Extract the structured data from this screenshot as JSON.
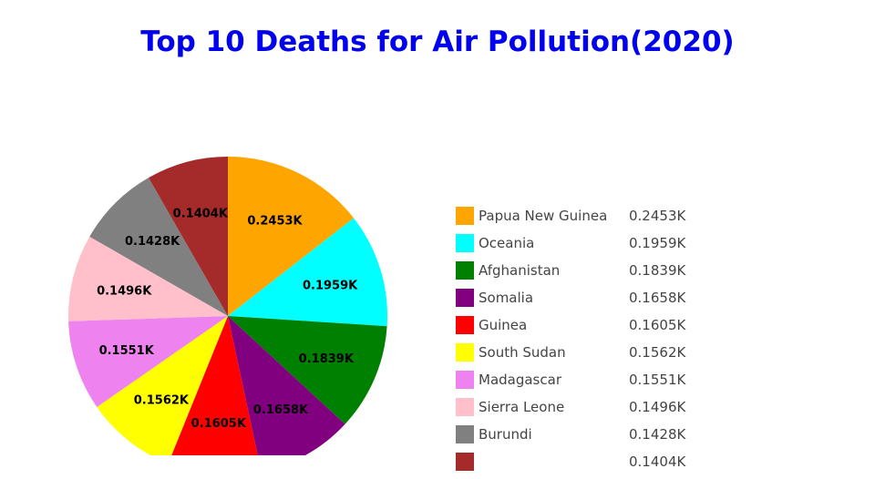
{
  "chart_data": {
    "type": "pie",
    "title": "Top 10 Deaths for Air Pollution(2020)",
    "slices": [
      {
        "name": "Papua New Guinea",
        "value": 0.2453,
        "label": "0.2453K",
        "color": "#ffa500"
      },
      {
        "name": "Oceania",
        "value": 0.1959,
        "label": "0.1959K",
        "color": "#00ffff"
      },
      {
        "name": "Afghanistan",
        "value": 0.1839,
        "label": "0.1839K",
        "color": "#008000"
      },
      {
        "name": "Somalia",
        "value": 0.1658,
        "label": "0.1658K",
        "color": "#800080"
      },
      {
        "name": "Guinea",
        "value": 0.1605,
        "label": "0.1605K",
        "color": "#ff0000"
      },
      {
        "name": "South Sudan",
        "value": 0.1562,
        "label": "0.1562K",
        "color": "#ffff00"
      },
      {
        "name": "Madagascar",
        "value": 0.1551,
        "label": "0.1551K",
        "color": "#ee82ee"
      },
      {
        "name": "Sierra Leone",
        "value": 0.1496,
        "label": "0.1496K",
        "color": "#ffc0cb"
      },
      {
        "name": "Burundi",
        "value": 0.1428,
        "label": "0.1428K",
        "color": "#808080"
      },
      {
        "name": "",
        "value": 0.1404,
        "label": "0.1404K",
        "color": "#a52a2a"
      }
    ],
    "legend_position": "right"
  }
}
